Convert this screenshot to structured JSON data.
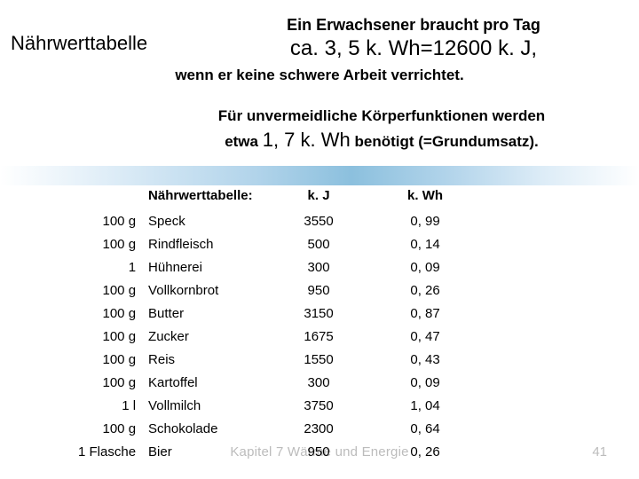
{
  "title_left": "Nährwerttabelle",
  "header": {
    "line1": "Ein Erwachsener braucht pro Tag",
    "line2": "ca. 3, 5 k. Wh=12600 k. J,",
    "line3": "wenn er keine schwere Arbeit verrichtet."
  },
  "sub": {
    "line1": "Für unvermeidliche Körperfunktionen werden",
    "l2_a": "etwa ",
    "l2_big": "1, 7 k. Wh",
    "l2_b": " benötigt (=Grundumsatz)."
  },
  "table": {
    "head_name": "Nährwerttabelle:",
    "head_kj": "k. J",
    "head_kwh": "k. Wh",
    "rows": [
      {
        "qty": "100 g",
        "name": "Speck",
        "kj": "3550",
        "kwh": "0, 99"
      },
      {
        "qty": "100 g",
        "name": "Rindfleisch",
        "kj": "500",
        "kwh": "0, 14"
      },
      {
        "qty": "1",
        "name": "Hühnerei",
        "kj": "300",
        "kwh": "0, 09"
      },
      {
        "qty": "100 g",
        "name": "Vollkornbrot",
        "kj": "950",
        "kwh": "0, 26"
      },
      {
        "qty": "100 g",
        "name": "Butter",
        "kj": "3150",
        "kwh": "0, 87"
      },
      {
        "qty": "100 g",
        "name": "Zucker",
        "kj": "1675",
        "kwh": "0, 47"
      },
      {
        "qty": "100 g",
        "name": "Reis",
        "kj": "1550",
        "kwh": "0, 43"
      },
      {
        "qty": "100 g",
        "name": "Kartoffel",
        "kj": "300",
        "kwh": "0, 09"
      },
      {
        "qty": "1 l",
        "name": "Vollmilch",
        "kj": "3750",
        "kwh": "1, 04"
      },
      {
        "qty": "100 g",
        "name": "Schokolade",
        "kj": "2300",
        "kwh": "0, 64"
      },
      {
        "qty": "1 Flasche",
        "name": "Bier",
        "kj": "950",
        "kwh": "0, 26"
      }
    ]
  },
  "footer_ghost": "Kapitel 7 Wärme und Energie",
  "page_num": "41",
  "style": {
    "page_bg": "#ffffff",
    "text_color": "#000000",
    "ghost_color": "#bcbcbc",
    "gradient_colors": [
      "#ffffff",
      "#d9eaf6",
      "#a9cfe8",
      "#7fb9da",
      "#a9cfe8",
      "#d9eaf6",
      "#ffffff"
    ],
    "title_fontsize": 22,
    "header_line1_fontsize": 18,
    "header_line2_fontsize": 24,
    "body_fontsize": 17,
    "table_fontsize": 15,
    "font_family": "Arial"
  }
}
